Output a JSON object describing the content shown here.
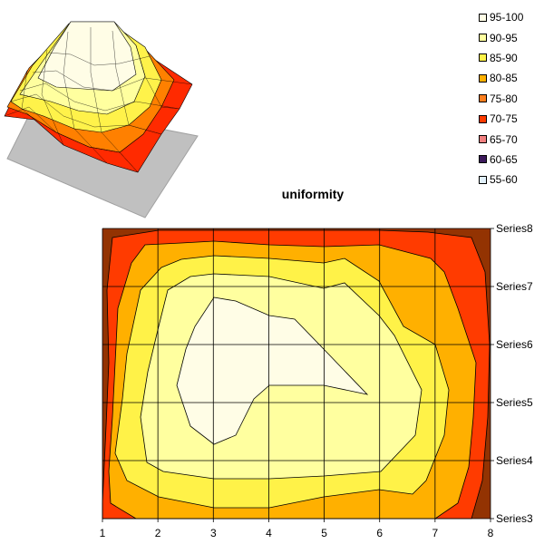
{
  "chart_data": {
    "type": "heatmap",
    "title": "uniformity",
    "x": [
      1,
      2,
      3,
      4,
      5,
      6,
      7,
      8
    ],
    "series_names": [
      "Series3",
      "Series4",
      "Series5",
      "Series6",
      "Series7",
      "Series8"
    ],
    "legend": [
      {
        "label": "95-100",
        "color": "#FFFDE6"
      },
      {
        "label": "90-95",
        "color": "#FFFF9F"
      },
      {
        "label": "85-90",
        "color": "#FFF248"
      },
      {
        "label": "80-85",
        "color": "#FFB000"
      },
      {
        "label": "75-80",
        "color": "#FF7F1E"
      },
      {
        "label": "70-75",
        "color": "#FF3B00"
      },
      {
        "label": "65-70",
        "color": "#F28080"
      },
      {
        "label": "60-65",
        "color": "#3D1A5C"
      },
      {
        "label": "55-60",
        "color": "#E1F0FB"
      }
    ],
    "background_color": "#933302",
    "legend_position": "top-right",
    "grid": true
  }
}
